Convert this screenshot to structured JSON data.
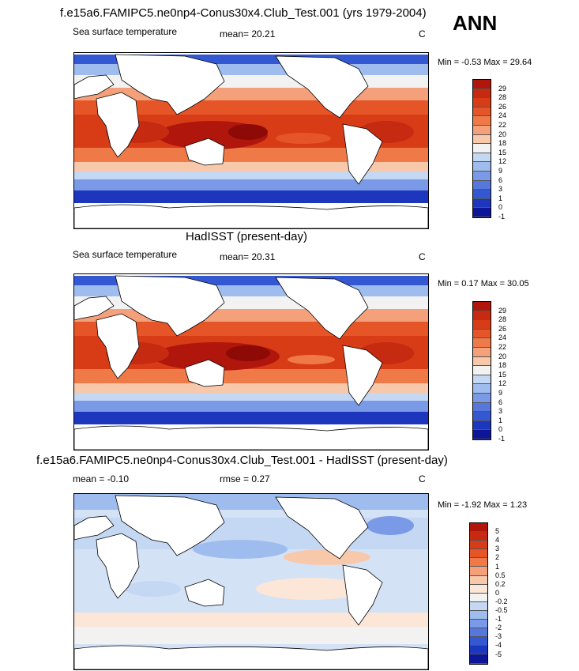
{
  "season": "ANN",
  "panels": [
    {
      "title": "f.e15a6.FAMIPC5.ne0np4-Conus30x4.Club_Test.001 (yrs 1979-2004)",
      "left_label": "Sea surface temperature",
      "center_label": "mean=  20.21",
      "units": "C",
      "minmax": "Min =  -0.53 Max =  29.64",
      "colorbar_labels": [
        "29",
        "28",
        "26",
        "24",
        "22",
        "20",
        "18",
        "15",
        "12",
        "9",
        "6",
        "3",
        "1",
        "0",
        "-1"
      ],
      "colorbar_colors": [
        "#b0160c",
        "#c62a10",
        "#d83c16",
        "#e65528",
        "#ef7a48",
        "#f4a07a",
        "#f8c8aa",
        "#f2f2f2",
        "#c4d8f4",
        "#9ebcee",
        "#7a9ae8",
        "#5678dc",
        "#3458d2",
        "#1c36be",
        "#0c1696"
      ]
    },
    {
      "title": "HadISST (present-day)",
      "left_label": "Sea surface temperature",
      "center_label": "mean=  20.31",
      "units": "C",
      "minmax": "Min =  0.17 Max =  30.05",
      "colorbar_labels": [
        "29",
        "28",
        "26",
        "24",
        "22",
        "20",
        "18",
        "15",
        "12",
        "9",
        "6",
        "3",
        "1",
        "0",
        "-1"
      ],
      "colorbar_colors": [
        "#b0160c",
        "#c62a10",
        "#d83c16",
        "#e65528",
        "#ef7a48",
        "#f4a07a",
        "#f8c8aa",
        "#f2f2f2",
        "#c4d8f4",
        "#9ebcee",
        "#7a9ae8",
        "#5678dc",
        "#3458d2",
        "#1c36be",
        "#0c1696"
      ]
    },
    {
      "title": "f.e15a6.FAMIPC5.ne0np4-Conus30x4.Club_Test.001 - HadISST (present-day)",
      "left_label": "mean =  -0.10",
      "center_label": "rmse =   0.27",
      "units": "C",
      "minmax": "Min =  -1.92 Max =   1.23",
      "colorbar_labels": [
        "5",
        "4",
        "3",
        "2",
        "1",
        "0.5",
        "0.2",
        "0",
        "-0.2",
        "-0.5",
        "-1",
        "-2",
        "-3",
        "-4",
        "-5"
      ],
      "colorbar_colors": [
        "#b0160c",
        "#c62a10",
        "#d83c16",
        "#e65528",
        "#ef7a48",
        "#f4a07a",
        "#f8c8aa",
        "#fbe6d8",
        "#f2f2f2",
        "#c4d8f4",
        "#9ebcee",
        "#7a9ae8",
        "#5678dc",
        "#3458d2",
        "#1c36be",
        "#0c1696"
      ]
    }
  ]
}
